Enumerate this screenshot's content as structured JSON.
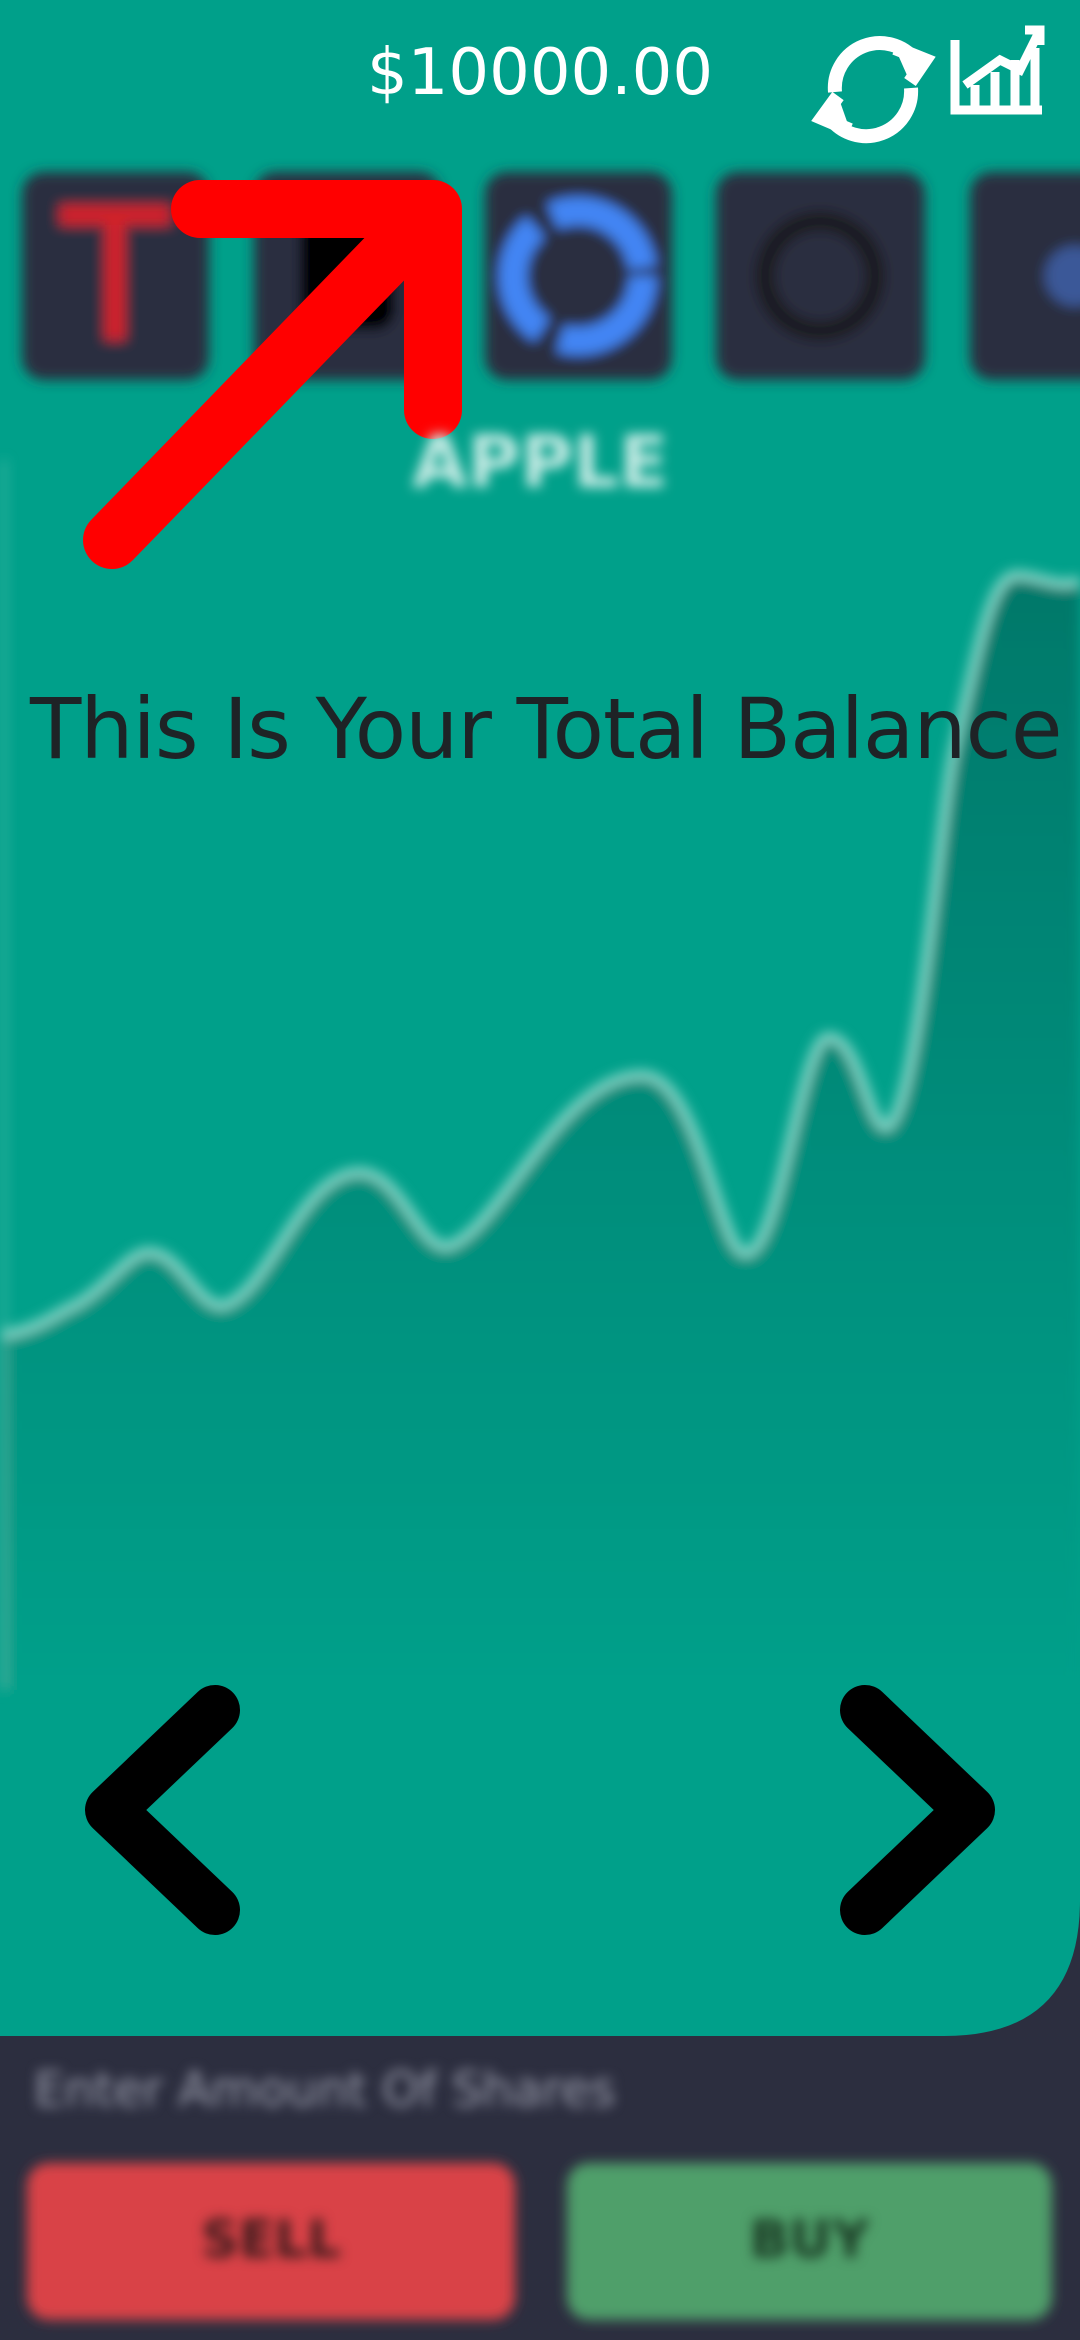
{
  "header": {
    "balance": "$10000.00"
  },
  "stock": {
    "name": "APPLE"
  },
  "tutorial": {
    "caption": "This Is Your Total Balance"
  },
  "trade": {
    "input_placeholder": "Enter Amount Of Shares",
    "sell": "SELL",
    "buy": "BUY"
  }
}
